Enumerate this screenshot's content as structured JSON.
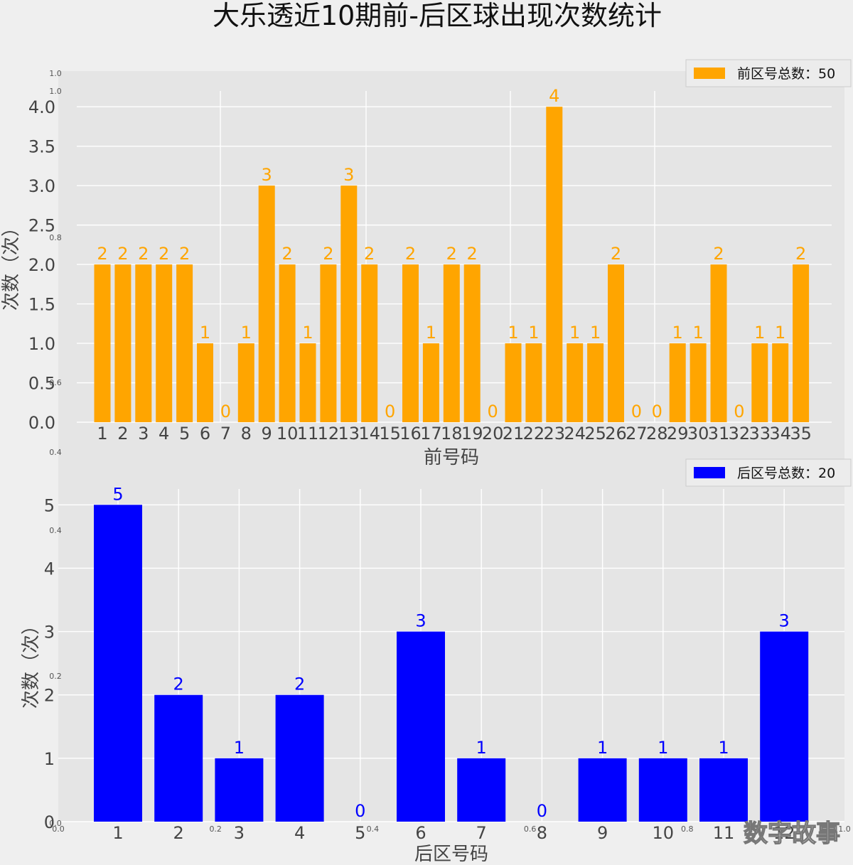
{
  "title": "大乐透近10期前-后区球出现次数统计",
  "watermark": "数字故事",
  "ghost_axis": {
    "left_ticks": [
      "1.0",
      "1.0",
      "0.8",
      "0.6",
      "0.4",
      "0.4",
      "0.2",
      "0.0"
    ],
    "bottom_ticks": [
      "0.0",
      "0.2",
      "0.4",
      "0.6",
      "0.8",
      "1.0"
    ]
  },
  "colors": {
    "front": "#FFA500",
    "back": "#0000FF",
    "panel_bg": "#e5e5e5",
    "figure_bg": "#efefef",
    "grid": "#ffffff"
  },
  "chart_data": [
    {
      "type": "bar",
      "categories": [
        "1",
        "2",
        "3",
        "4",
        "5",
        "6",
        "7",
        "8",
        "9",
        "10",
        "11",
        "12",
        "13",
        "14",
        "15",
        "16",
        "17",
        "18",
        "19",
        "20",
        "21",
        "22",
        "23",
        "24",
        "25",
        "26",
        "27",
        "28",
        "29",
        "30",
        "31",
        "32",
        "33",
        "34",
        "35"
      ],
      "values": [
        2,
        2,
        2,
        2,
        2,
        1,
        0,
        1,
        3,
        2,
        1,
        2,
        3,
        2,
        0,
        2,
        1,
        2,
        2,
        0,
        1,
        1,
        4,
        1,
        1,
        2,
        0,
        0,
        1,
        1,
        2,
        0,
        1,
        1,
        2
      ],
      "xlabel": "前号码",
      "ylabel": "次数（次）",
      "ylim": [
        0,
        4.2
      ],
      "yticks": [
        "0.0",
        "0.5",
        "1.0",
        "1.5",
        "2.0",
        "2.5",
        "3.0",
        "3.5",
        "4.0"
      ],
      "legend": "前区号总数：50",
      "legend_position": "top-right",
      "grid": true,
      "color": "#FFA500"
    },
    {
      "type": "bar",
      "categories": [
        "1",
        "2",
        "3",
        "4",
        "5",
        "6",
        "7",
        "8",
        "9",
        "10",
        "11",
        "12"
      ],
      "values": [
        5,
        2,
        1,
        2,
        0,
        3,
        1,
        0,
        1,
        1,
        1,
        3
      ],
      "xlabel": "后区号码",
      "ylabel": "次数（次）",
      "ylim": [
        0,
        5.25
      ],
      "yticks": [
        "0",
        "1",
        "2",
        "3",
        "4",
        "5"
      ],
      "legend": "后区号总数：20",
      "legend_position": "top-right",
      "grid": true,
      "color": "#0000FF"
    }
  ]
}
